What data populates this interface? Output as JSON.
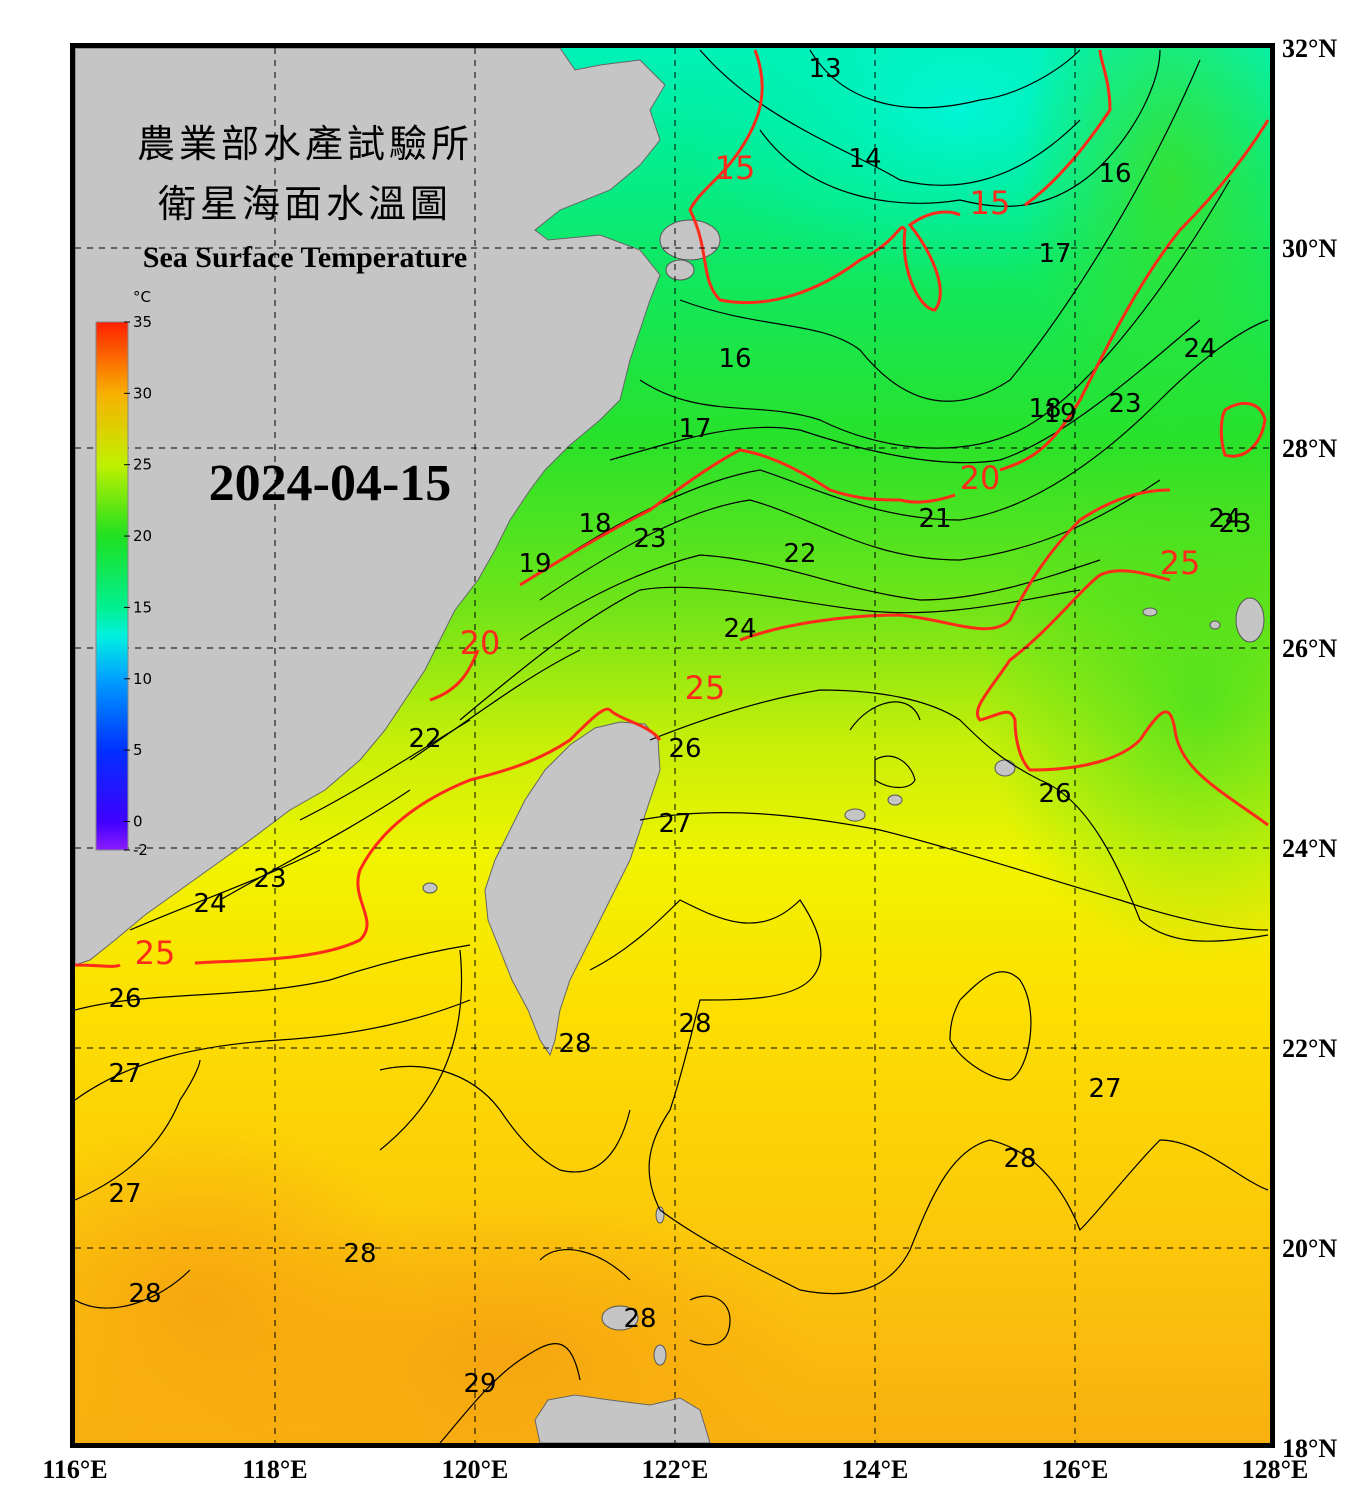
{
  "title": {
    "line1": "農業部水產試驗所",
    "line2": "衛星海面水溫圖",
    "english": "Sea Surface Temperature"
  },
  "date": "2024-04-15",
  "colorbar": {
    "unit": "°C",
    "ticks": [
      "35",
      "30",
      "25",
      "20",
      "15",
      "10",
      "5",
      "0",
      "-2"
    ],
    "min": -2,
    "max": 35
  },
  "axes": {
    "lon_labels": [
      "116°E",
      "118°E",
      "120°E",
      "122°E",
      "124°E",
      "126°E",
      "128°E"
    ],
    "lat_labels": [
      "32°N",
      "30°N",
      "28°N",
      "26°N",
      "24°N",
      "22°N",
      "20°N",
      "18°N"
    ],
    "lon_range": [
      116,
      128
    ],
    "lat_range": [
      18,
      32
    ]
  },
  "contour_labels": [
    {
      "text": "13",
      "lon": 123.5,
      "lat": 31.8
    },
    {
      "text": "14",
      "lon": 123.9,
      "lat": 30.9
    },
    {
      "text": "16",
      "lon": 126.4,
      "lat": 30.75
    },
    {
      "text": "17",
      "lon": 125.8,
      "lat": 29.95
    },
    {
      "text": "24",
      "lon": 127.25,
      "lat": 29.0
    },
    {
      "text": "16",
      "lon": 122.6,
      "lat": 28.9
    },
    {
      "text": "23",
      "lon": 126.5,
      "lat": 28.45
    },
    {
      "text": "18",
      "lon": 125.7,
      "lat": 28.4
    },
    {
      "text": "19",
      "lon": 125.85,
      "lat": 28.35
    },
    {
      "text": "17",
      "lon": 122.2,
      "lat": 28.2
    },
    {
      "text": "21",
      "lon": 124.6,
      "lat": 27.3
    },
    {
      "text": "24",
      "lon": 127.5,
      "lat": 27.3
    },
    {
      "text": "23",
      "lon": 127.6,
      "lat": 27.25
    },
    {
      "text": "18",
      "lon": 121.2,
      "lat": 27.25
    },
    {
      "text": "23",
      "lon": 121.75,
      "lat": 27.1
    },
    {
      "text": "22",
      "lon": 123.25,
      "lat": 26.95
    },
    {
      "text": "19",
      "lon": 120.6,
      "lat": 26.85
    },
    {
      "text": "24",
      "lon": 122.65,
      "lat": 26.2
    },
    {
      "text": "22",
      "lon": 119.5,
      "lat": 25.1
    },
    {
      "text": "26",
      "lon": 122.1,
      "lat": 25.0
    },
    {
      "text": "26",
      "lon": 125.8,
      "lat": 24.55
    },
    {
      "text": "27",
      "lon": 122.0,
      "lat": 24.25
    },
    {
      "text": "23",
      "lon": 117.95,
      "lat": 23.7
    },
    {
      "text": "24",
      "lon": 117.35,
      "lat": 23.45
    },
    {
      "text": "26",
      "lon": 116.5,
      "lat": 22.5
    },
    {
      "text": "28",
      "lon": 121.0,
      "lat": 22.05
    },
    {
      "text": "28",
      "lon": 122.2,
      "lat": 22.25
    },
    {
      "text": "27",
      "lon": 116.5,
      "lat": 21.75
    },
    {
      "text": "27",
      "lon": 126.3,
      "lat": 21.6
    },
    {
      "text": "28",
      "lon": 125.45,
      "lat": 20.9
    },
    {
      "text": "27",
      "lon": 116.5,
      "lat": 20.55
    },
    {
      "text": "28",
      "lon": 118.85,
      "lat": 19.95
    },
    {
      "text": "28",
      "lon": 116.7,
      "lat": 19.55
    },
    {
      "text": "28",
      "lon": 121.65,
      "lat": 19.3
    },
    {
      "text": "29",
      "lon": 120.05,
      "lat": 18.65
    }
  ],
  "red_contour_labels": [
    {
      "text": "15",
      "lon": 122.6,
      "lat": 30.8
    },
    {
      "text": "15",
      "lon": 125.15,
      "lat": 30.45
    },
    {
      "text": "20",
      "lon": 125.05,
      "lat": 27.7
    },
    {
      "text": "25",
      "lon": 127.05,
      "lat": 26.85
    },
    {
      "text": "20",
      "lon": 120.05,
      "lat": 26.05
    },
    {
      "text": "25",
      "lon": 122.3,
      "lat": 25.6
    },
    {
      "text": "25",
      "lon": 116.8,
      "lat": 22.95
    }
  ],
  "colors": {
    "land": "#c5c5c5",
    "frame": "#000000",
    "red_contour": "#ff2a1a",
    "black_contour": "#000000"
  }
}
